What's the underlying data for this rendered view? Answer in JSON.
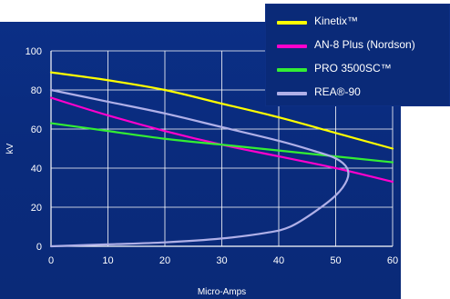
{
  "chart_data": {
    "type": "line",
    "xlabel": "Micro-Amps",
    "ylabel": "kV",
    "xlim": [
      0,
      60
    ],
    "ylim": [
      0,
      100
    ],
    "xticks": [
      "0",
      "10",
      "20",
      "30",
      "40",
      "50",
      "60"
    ],
    "yticks": [
      "0",
      "20",
      "40",
      "60",
      "80",
      "100"
    ],
    "grid": true,
    "legend_position": "top-right",
    "series": [
      {
        "name": "Kinetix™",
        "color": "#ffff00",
        "points": [
          [
            0,
            89
          ],
          [
            10,
            85
          ],
          [
            20,
            80
          ],
          [
            30,
            73
          ],
          [
            40,
            66
          ],
          [
            50,
            58
          ],
          [
            60,
            50
          ]
        ]
      },
      {
        "name": "AN-8 Plus (Nordson)",
        "color": "#ff00cc",
        "points": [
          [
            0,
            76
          ],
          [
            10,
            67
          ],
          [
            20,
            59
          ],
          [
            30,
            52
          ],
          [
            40,
            46
          ],
          [
            50,
            40
          ],
          [
            60,
            33
          ]
        ]
      },
      {
        "name": "PRO 3500SC™",
        "color": "#33ee33",
        "points": [
          [
            0,
            63
          ],
          [
            10,
            59
          ],
          [
            20,
            55
          ],
          [
            30,
            52
          ],
          [
            40,
            49
          ],
          [
            50,
            46
          ],
          [
            60,
            43
          ]
        ]
      },
      {
        "name": "REA®-90",
        "color": "#b0b0e8",
        "points": [
          [
            0,
            80
          ],
          [
            10,
            74
          ],
          [
            20,
            68
          ],
          [
            30,
            61
          ],
          [
            40,
            54
          ],
          [
            46,
            49
          ],
          [
            50,
            45
          ],
          [
            52,
            40
          ],
          [
            52,
            34
          ],
          [
            50,
            26
          ],
          [
            46,
            17
          ],
          [
            42,
            10
          ],
          [
            38,
            7
          ],
          [
            30,
            4
          ],
          [
            20,
            2
          ],
          [
            10,
            1
          ],
          [
            0,
            0
          ]
        ]
      }
    ]
  }
}
